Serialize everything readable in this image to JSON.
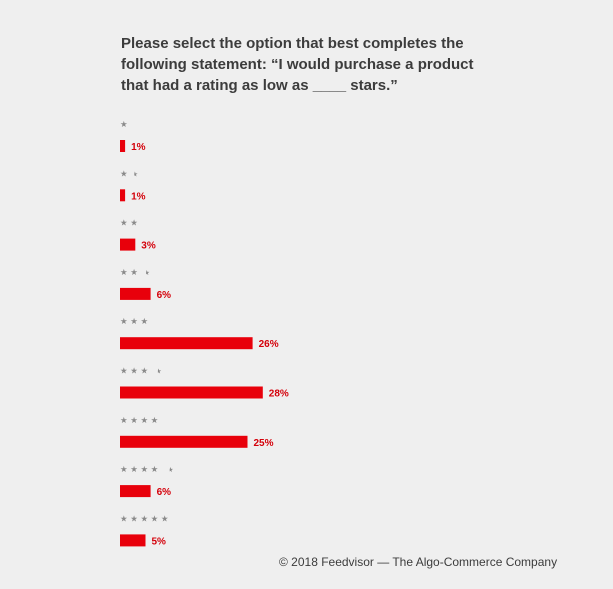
{
  "title": "Please select the option that best completes the following statement: “I would purchase a product that had a rating as low as ____ stars.”",
  "footer": "© 2018 Feedvisor — The Algo-Commerce Company",
  "colors": {
    "bar": "#e8000b",
    "label": "#d4000a",
    "stars": "#8a8a8a",
    "background": "#efefef"
  },
  "chart_data": {
    "type": "bar",
    "orientation": "horizontal",
    "categories": [
      "★",
      "★½",
      "★★",
      "★★½",
      "★★★",
      "★★★½",
      "★★★★",
      "★★★★½",
      "★★★★★"
    ],
    "star_counts": [
      1,
      1.5,
      2,
      2.5,
      3,
      3.5,
      4,
      4.5,
      5
    ],
    "values": [
      1,
      1,
      3,
      6,
      26,
      28,
      25,
      6,
      5
    ],
    "labels": [
      "1%",
      "1%",
      "3%",
      "6%",
      "26%",
      "28%",
      "25%",
      "6%",
      "5%"
    ],
    "unit": "%",
    "grid": false
  }
}
